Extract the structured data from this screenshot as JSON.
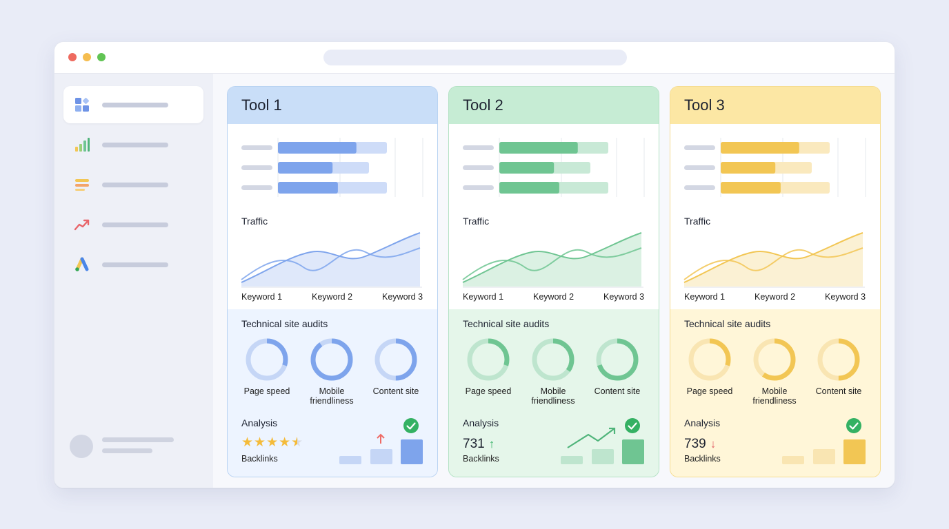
{
  "window": {
    "controls": [
      "close",
      "minimize",
      "maximize"
    ],
    "control_colors": [
      "#ee6a5f",
      "#f5bd4f",
      "#61c454"
    ]
  },
  "sidebar": {
    "items": [
      {
        "icon": "grid-icon",
        "active": true
      },
      {
        "icon": "bar-chart-icon",
        "active": false
      },
      {
        "icon": "list-icon",
        "active": false
      },
      {
        "icon": "trend-up-icon",
        "active": false
      },
      {
        "icon": "ads-logo-icon",
        "active": false
      }
    ]
  },
  "tools": [
    {
      "title": "Tool 1",
      "accent": "#7ea4ec",
      "header_bg": "#c9def8",
      "border": "#b9d3f2",
      "bottom_bg": "#edf4ff",
      "bars": [
        0.72,
        0.6,
        0.55
      ],
      "traffic_title": "Traffic",
      "keywords": [
        "Keyword 1",
        "Keyword 2",
        "Keyword 3"
      ],
      "audits_title": "Technical site audits",
      "audits": [
        {
          "label": "Page speed",
          "value": 0.3
        },
        {
          "label": "Mobile friendliness",
          "value": 0.9
        },
        {
          "label": "Content site",
          "value": 0.5
        }
      ],
      "analysis_title": "Analysis",
      "rating": 4.5,
      "rating_stars": "★★★★★",
      "metric_value": "",
      "metric_trend": "up",
      "backlinks_label": "Backlinks"
    },
    {
      "title": "Tool 2",
      "accent": "#6fc592",
      "header_bg": "#c6ecd4",
      "border": "#b3e2c4",
      "bottom_bg": "#e5f6ea",
      "bars": [
        0.72,
        0.6,
        0.55
      ],
      "traffic_title": "Traffic",
      "keywords": [
        "Keyword 1",
        "Keyword 2",
        "Keyword 3"
      ],
      "audits_title": "Technical site audits",
      "audits": [
        {
          "label": "Page speed",
          "value": 0.3
        },
        {
          "label": "Mobile friendliness",
          "value": 0.35
        },
        {
          "label": "Content site",
          "value": 0.7
        }
      ],
      "analysis_title": "Analysis",
      "rating": null,
      "metric_value": "731",
      "metric_trend": "up",
      "backlinks_label": "Backlinks"
    },
    {
      "title": "Tool 3",
      "accent": "#f2c654",
      "header_bg": "#fce7a4",
      "border": "#f6dc90",
      "bottom_bg": "#fff6d8",
      "bars": [
        0.72,
        0.6,
        0.55
      ],
      "traffic_title": "Traffic",
      "keywords": [
        "Keyword 1",
        "Keyword 2",
        "Keyword 3"
      ],
      "audits_title": "Technical site audits",
      "audits": [
        {
          "label": "Page speed",
          "value": 0.3
        },
        {
          "label": "Mobile friendliness",
          "value": 0.6
        },
        {
          "label": "Content site",
          "value": 0.5
        }
      ],
      "analysis_title": "Analysis",
      "rating": null,
      "metric_value": "739",
      "metric_trend": "down",
      "backlinks_label": "Backlinks"
    }
  ]
}
